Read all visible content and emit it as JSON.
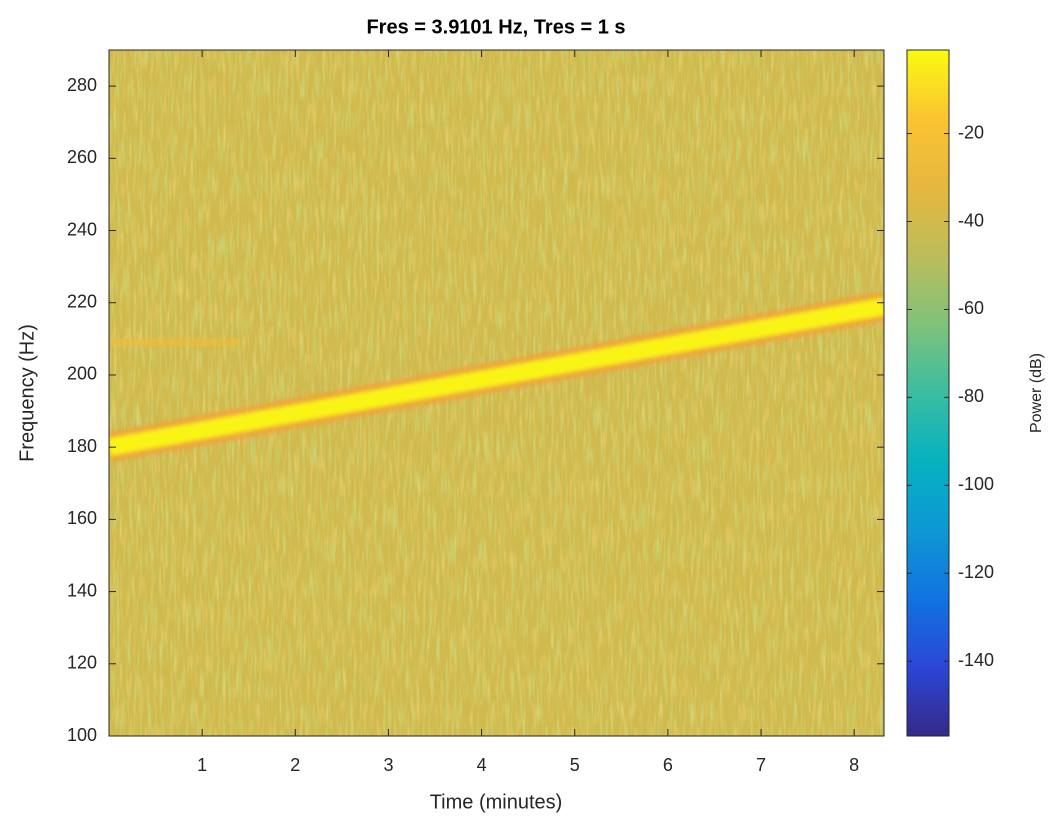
{
  "chart_data": {
    "type": "spectrogram",
    "title": "Fres = 3.9101 Hz, Tres = 1 s",
    "xlabel": "Time (minutes)",
    "ylabel": "Frequency (Hz)",
    "colorbar_label": "Power (dB)",
    "xlim": [
      0,
      8.32
    ],
    "xticks": [
      1,
      2,
      3,
      4,
      5,
      6,
      7,
      8
    ],
    "ylim": [
      100,
      290
    ],
    "yticks": [
      100,
      120,
      140,
      160,
      180,
      200,
      220,
      240,
      260,
      280
    ],
    "clim": [
      -157,
      -1
    ],
    "cticks": [
      -20,
      -40,
      -60,
      -80,
      -100,
      -120,
      -140
    ],
    "colormap": [
      "#352a87",
      "#2b46d6",
      "#1173e0",
      "#0d98d4",
      "#06b1c0",
      "#3abda0",
      "#80c27a",
      "#bcbd5a",
      "#e6b73f",
      "#fbc432",
      "#f9fb0e"
    ],
    "background_power": -40,
    "series": [
      {
        "x": [
          0,
          8.32
        ],
        "values": [
          180,
          219
        ],
        "power": -3
      },
      {
        "x": [
          0,
          1.4
        ],
        "values": [
          209,
          209
        ],
        "power": -26
      }
    ]
  }
}
